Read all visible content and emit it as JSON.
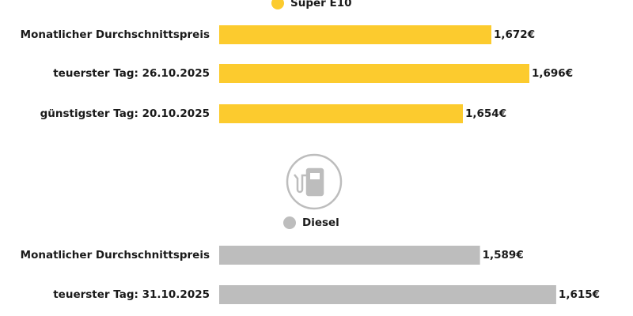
{
  "chart_data": [
    {
      "type": "bar",
      "orientation": "horizontal",
      "categories": [
        "Monatlicher Durchschnittspreis",
        "teuerster Tag: 26.10.2025",
        "günstigster Tag: 20.10.2025"
      ],
      "series": [
        {
          "name": "Super E10",
          "color": "#fccb2e",
          "values": [
            1.672,
            1.696,
            1.654
          ],
          "value_labels": [
            "1,672€",
            "1,696€",
            "1,654€"
          ]
        }
      ],
      "xlim": [
        1.5,
        1.75
      ]
    },
    {
      "type": "bar",
      "orientation": "horizontal",
      "categories": [
        "Monatlicher Durchschnittspreis",
        "teuerster Tag: 31.10.2025"
      ],
      "series": [
        {
          "name": "Diesel",
          "color": "#bdbdbd",
          "values": [
            1.589,
            1.615
          ],
          "value_labels": [
            "1,589€",
            "1,615€"
          ]
        }
      ],
      "xlim": [
        1.5,
        1.635
      ]
    }
  ]
}
